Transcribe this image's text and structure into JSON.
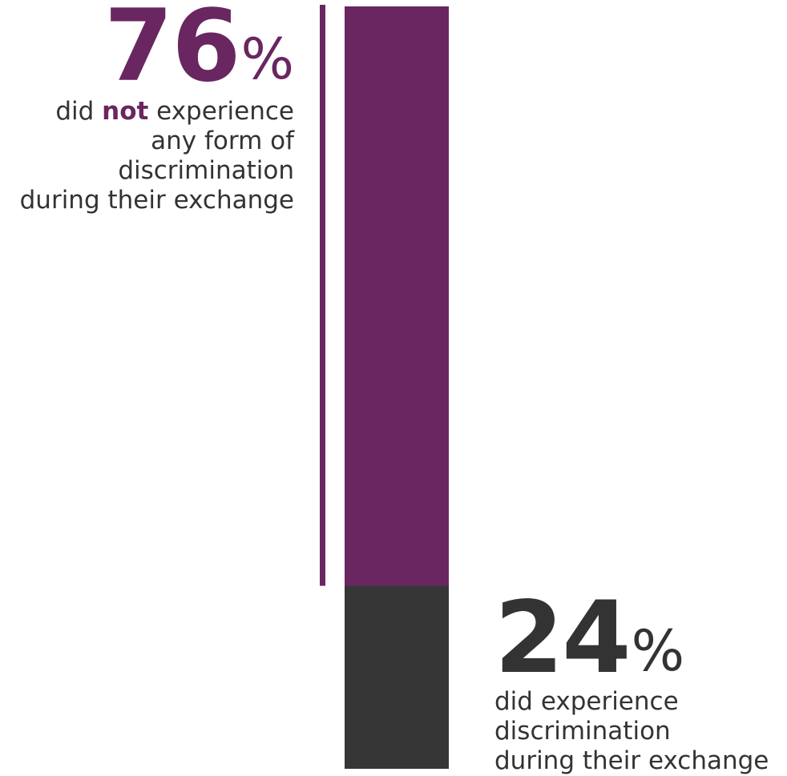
{
  "chart_data": {
    "type": "bar",
    "orientation": "stacked-vertical-single",
    "unit": "%",
    "segments": [
      {
        "label": "did not experience any form of discrimination during their exchange",
        "value": 76,
        "color": "#6a2660"
      },
      {
        "label": "did experience discrimination during their exchange",
        "value": 24,
        "color": "#363636"
      }
    ],
    "total": 100
  },
  "annotations": {
    "top": {
      "number": "76",
      "percent_sign": "%",
      "line1_pre": "did ",
      "line1_emph": "not",
      "line1_post": " experience",
      "line2": "any form of",
      "line3": "discrimination",
      "line4": "during their exchange"
    },
    "bottom": {
      "number": "24",
      "percent_sign": "%",
      "line1": "did experience",
      "line2": "discrimination",
      "line3": "during their exchange"
    }
  },
  "colors": {
    "accent": "#6a2660",
    "dark": "#363636",
    "text": "#333333",
    "background": "#ffffff"
  }
}
